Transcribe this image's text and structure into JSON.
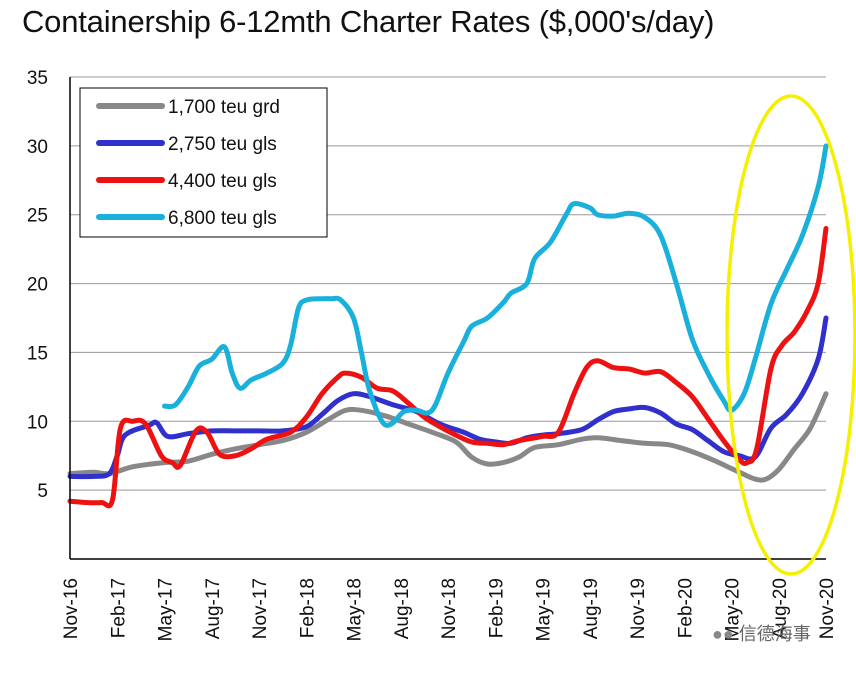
{
  "title": "Containership 6-12mth Charter Rates ($,000's/day)",
  "watermark": "信德海事",
  "chart_data": {
    "type": "line",
    "title": "Containership 6-12mth Charter Rates ($,000's/day)",
    "xlabel": "",
    "ylabel": "",
    "ylim": [
      0,
      35
    ],
    "yticks": [
      5,
      10,
      15,
      20,
      25,
      30,
      35
    ],
    "xlim": [
      0,
      48
    ],
    "xticks": [
      {
        "t": 0,
        "label": "Nov-16"
      },
      {
        "t": 3,
        "label": "Feb-17"
      },
      {
        "t": 6,
        "label": "May-17"
      },
      {
        "t": 9,
        "label": "Aug-17"
      },
      {
        "t": 12,
        "label": "Nov-17"
      },
      {
        "t": 15,
        "label": "Feb-18"
      },
      {
        "t": 18,
        "label": "May-18"
      },
      {
        "t": 21,
        "label": "Aug-18"
      },
      {
        "t": 24,
        "label": "Nov-18"
      },
      {
        "t": 27,
        "label": "Feb-19"
      },
      {
        "t": 30,
        "label": "May-19"
      },
      {
        "t": 33,
        "label": "Aug-19"
      },
      {
        "t": 36,
        "label": "Nov-19"
      },
      {
        "t": 39,
        "label": "Feb-20"
      },
      {
        "t": 42,
        "label": "May-20"
      },
      {
        "t": 45,
        "label": "Aug-20"
      },
      {
        "t": 48,
        "label": "Nov-20"
      }
    ],
    "grid": "horizontal",
    "legend": "top-left",
    "annotation": "yellow ellipse highlighting May-20 to Nov-20",
    "series": [
      {
        "name": "1,700 teu grd",
        "color": "#888888",
        "points": [
          [
            0,
            6.2
          ],
          [
            1.5,
            6.3
          ],
          [
            2.5,
            6.2
          ],
          [
            4,
            6.7
          ],
          [
            6,
            7
          ],
          [
            7.5,
            7.1
          ],
          [
            9,
            7.6
          ],
          [
            10.5,
            8
          ],
          [
            12,
            8.3
          ],
          [
            13.5,
            8.6
          ],
          [
            15,
            9.2
          ],
          [
            16.5,
            10.2
          ],
          [
            17.5,
            10.8
          ],
          [
            18.5,
            10.8
          ],
          [
            20,
            10.4
          ],
          [
            21.5,
            9.8
          ],
          [
            23,
            9.2
          ],
          [
            24.5,
            8.5
          ],
          [
            25.5,
            7.4
          ],
          [
            26.5,
            6.9
          ],
          [
            27.5,
            7
          ],
          [
            28.5,
            7.4
          ],
          [
            29.5,
            8.1
          ],
          [
            31,
            8.3
          ],
          [
            32.5,
            8.7
          ],
          [
            33.5,
            8.8
          ],
          [
            35,
            8.6
          ],
          [
            36.5,
            8.4
          ],
          [
            38,
            8.3
          ],
          [
            39.5,
            7.8
          ],
          [
            41,
            7.1
          ],
          [
            42.5,
            6.3
          ],
          [
            43.5,
            5.8
          ],
          [
            44.2,
            5.8
          ],
          [
            45,
            6.5
          ],
          [
            46,
            8
          ],
          [
            47,
            9.5
          ],
          [
            48,
            12
          ]
        ]
      },
      {
        "name": "2,750 teu gls",
        "color": "#3030cc",
        "points": [
          [
            0,
            6
          ],
          [
            1.5,
            6
          ],
          [
            2.5,
            6.2
          ],
          [
            3,
            7.5
          ],
          [
            3.5,
            9
          ],
          [
            5,
            9.7
          ],
          [
            5.5,
            9.9
          ],
          [
            6.2,
            8.9
          ],
          [
            7.5,
            9.1
          ],
          [
            9,
            9.3
          ],
          [
            10.5,
            9.3
          ],
          [
            12,
            9.3
          ],
          [
            13.5,
            9.3
          ],
          [
            15,
            9.6
          ],
          [
            16,
            10.5
          ],
          [
            17,
            11.5
          ],
          [
            18,
            12
          ],
          [
            19,
            11.8
          ],
          [
            20.5,
            11.2
          ],
          [
            22,
            10.7
          ],
          [
            23.5,
            9.8
          ],
          [
            25,
            9.2
          ],
          [
            26,
            8.7
          ],
          [
            27,
            8.5
          ],
          [
            28,
            8.4
          ],
          [
            29,
            8.8
          ],
          [
            30,
            9
          ],
          [
            31,
            9.1
          ],
          [
            32.5,
            9.4
          ],
          [
            33.5,
            10.1
          ],
          [
            34.5,
            10.7
          ],
          [
            35.5,
            10.9
          ],
          [
            36.5,
            11
          ],
          [
            37.5,
            10.6
          ],
          [
            38.5,
            9.8
          ],
          [
            39.5,
            9.4
          ],
          [
            40.5,
            8.6
          ],
          [
            41.5,
            7.8
          ],
          [
            42.5,
            7.5
          ],
          [
            43.5,
            7.4
          ],
          [
            44.5,
            9.5
          ],
          [
            45.5,
            10.5
          ],
          [
            46.5,
            12
          ],
          [
            47.5,
            14.5
          ],
          [
            48,
            17.5
          ]
        ]
      },
      {
        "name": "4,400 teu gls",
        "color": "#ee1111",
        "points": [
          [
            0,
            4.2
          ],
          [
            1,
            4.1
          ],
          [
            2,
            4.1
          ],
          [
            2.7,
            4.3
          ],
          [
            3.2,
            9.5
          ],
          [
            4,
            10
          ],
          [
            4.8,
            9.8
          ],
          [
            5.8,
            7.5
          ],
          [
            6.5,
            7
          ],
          [
            7,
            6.8
          ],
          [
            8,
            9.3
          ],
          [
            8.7,
            9.2
          ],
          [
            9.5,
            7.6
          ],
          [
            10.5,
            7.5
          ],
          [
            11.5,
            8
          ],
          [
            12.5,
            8.7
          ],
          [
            14,
            9.2
          ],
          [
            15,
            10.3
          ],
          [
            16,
            12
          ],
          [
            17,
            13.2
          ],
          [
            17.5,
            13.5
          ],
          [
            18.5,
            13.2
          ],
          [
            19.5,
            12.4
          ],
          [
            20.5,
            12.2
          ],
          [
            21.5,
            11.3
          ],
          [
            22.5,
            10.3
          ],
          [
            23.5,
            9.6
          ],
          [
            24.5,
            9
          ],
          [
            25.5,
            8.5
          ],
          [
            26.5,
            8.4
          ],
          [
            27.5,
            8.3
          ],
          [
            28.5,
            8.6
          ],
          [
            30,
            8.9
          ],
          [
            31,
            9.2
          ],
          [
            32,
            12
          ],
          [
            32.8,
            13.9
          ],
          [
            33.5,
            14.4
          ],
          [
            34.5,
            13.9
          ],
          [
            35.5,
            13.8
          ],
          [
            36.5,
            13.5
          ],
          [
            37.5,
            13.6
          ],
          [
            38.5,
            12.8
          ],
          [
            39.5,
            11.8
          ],
          [
            40.5,
            10.2
          ],
          [
            41.5,
            8.6
          ],
          [
            42.5,
            7.2
          ],
          [
            43,
            7
          ],
          [
            43.6,
            8
          ],
          [
            44.5,
            13.8
          ],
          [
            45.2,
            15.5
          ],
          [
            46,
            16.5
          ],
          [
            46.8,
            18
          ],
          [
            47.5,
            20
          ],
          [
            48,
            24
          ]
        ]
      },
      {
        "name": "6,800 teu gls",
        "color": "#1ab0dc",
        "points": [
          [
            6,
            11.1
          ],
          [
            6.7,
            11.2
          ],
          [
            7.5,
            12.5
          ],
          [
            8.2,
            14
          ],
          [
            9,
            14.5
          ],
          [
            9.8,
            15.4
          ],
          [
            10.3,
            13.5
          ],
          [
            10.8,
            12.4
          ],
          [
            11.5,
            13
          ],
          [
            12.5,
            13.5
          ],
          [
            13.5,
            14.2
          ],
          [
            14,
            15.5
          ],
          [
            14.5,
            18.2
          ],
          [
            15,
            18.8
          ],
          [
            16,
            18.9
          ],
          [
            16.6,
            18.9
          ],
          [
            17.2,
            18.8
          ],
          [
            18,
            17.5
          ],
          [
            18.5,
            15
          ],
          [
            19,
            12.3
          ],
          [
            19.8,
            10
          ],
          [
            20.4,
            9.8
          ],
          [
            21.2,
            10.7
          ],
          [
            22,
            10.8
          ],
          [
            22.7,
            10.6
          ],
          [
            23.2,
            11.2
          ],
          [
            24,
            13.5
          ],
          [
            25,
            15.8
          ],
          [
            25.5,
            16.9
          ],
          [
            26.5,
            17.5
          ],
          [
            27.5,
            18.6
          ],
          [
            28,
            19.3
          ],
          [
            29,
            20
          ],
          [
            29.5,
            21.8
          ],
          [
            30.5,
            23
          ],
          [
            31.5,
            25
          ],
          [
            32,
            25.8
          ],
          [
            33,
            25.5
          ],
          [
            33.5,
            25
          ],
          [
            34.5,
            24.9
          ],
          [
            35.5,
            25.1
          ],
          [
            36.5,
            24.8
          ],
          [
            37.5,
            23.5
          ],
          [
            38.5,
            20
          ],
          [
            39.5,
            16
          ],
          [
            40.5,
            13.5
          ],
          [
            41.5,
            11.5
          ],
          [
            42,
            10.8
          ],
          [
            42.8,
            12
          ],
          [
            43.5,
            14.5
          ],
          [
            44.5,
            18.5
          ],
          [
            45.5,
            21
          ],
          [
            46.5,
            23.5
          ],
          [
            47.5,
            27
          ],
          [
            48,
            30
          ]
        ]
      }
    ]
  }
}
